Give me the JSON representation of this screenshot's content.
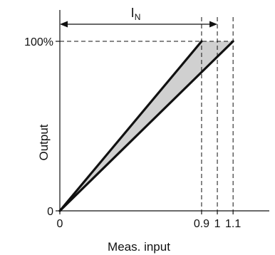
{
  "chart_data": {
    "type": "line",
    "title": "",
    "xlabel": "Meas. input",
    "ylabel": "Output",
    "annotation": {
      "label": "I",
      "subscript": "N"
    },
    "x_ticks": [
      {
        "value": 0,
        "label": "0"
      },
      {
        "value": 0.9,
        "label": "0.9"
      },
      {
        "value": 1,
        "label": "1"
      },
      {
        "value": 1.1,
        "label": "1.1"
      }
    ],
    "y_ticks": [
      {
        "value": 0,
        "label": "0"
      },
      {
        "value": 100,
        "label": "100%"
      }
    ],
    "xlim": [
      0,
      1.33
    ],
    "ylim": [
      0,
      100
    ],
    "series": [
      {
        "x": [
          0,
          0.9
        ],
        "y": [
          0,
          100
        ]
      },
      {
        "x": [
          0,
          1.1
        ],
        "y": [
          0,
          100
        ]
      }
    ],
    "band_fill": "#d0d0d0",
    "line_color": "#111111",
    "grid": false
  }
}
